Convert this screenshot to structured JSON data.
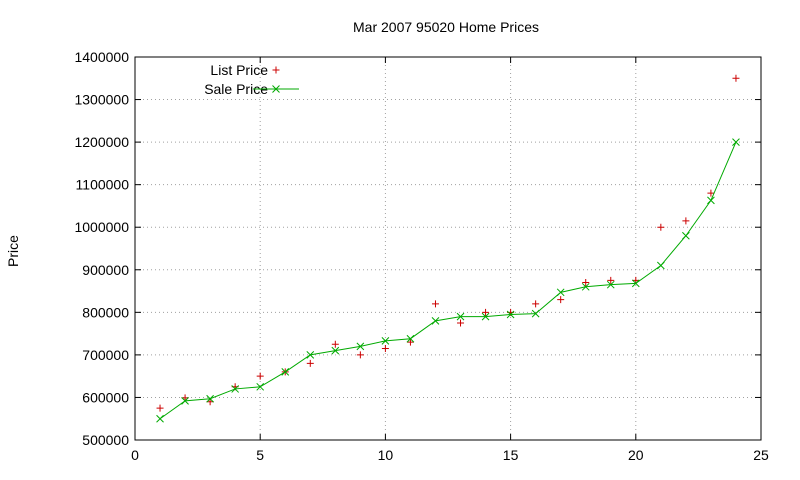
{
  "chart_data": {
    "type": "scatter",
    "title": "Mar 2007 95020 Home Prices",
    "xlabel": "",
    "ylabel": "Price",
    "xlim": [
      0,
      25
    ],
    "ylim": [
      500000,
      1400000
    ],
    "xticks": [
      0,
      5,
      10,
      15,
      20,
      25
    ],
    "yticks": [
      500000,
      600000,
      700000,
      800000,
      900000,
      1000000,
      1100000,
      1200000,
      1300000,
      1400000
    ],
    "grid": true,
    "legend_position": "top-left",
    "series": [
      {
        "name": "List Price",
        "style": "points",
        "marker": "+",
        "color": "#cc0000",
        "x": [
          1,
          2,
          3,
          4,
          5,
          6,
          7,
          8,
          9,
          10,
          11,
          12,
          13,
          14,
          15,
          16,
          17,
          18,
          19,
          20,
          21,
          22,
          23,
          24
        ],
        "y": [
          575000,
          599000,
          590000,
          625000,
          650000,
          660000,
          680000,
          725000,
          700000,
          715000,
          730000,
          820000,
          775000,
          800000,
          800000,
          820000,
          830000,
          870000,
          875000,
          875000,
          1000000,
          1015000,
          1080000,
          1350000
        ]
      },
      {
        "name": "Sale Price",
        "style": "linespoints",
        "marker": "x",
        "color": "#00aa00",
        "x": [
          1,
          2,
          3,
          4,
          5,
          6,
          7,
          8,
          9,
          10,
          11,
          12,
          13,
          14,
          15,
          16,
          17,
          18,
          19,
          20,
          21,
          22,
          23,
          24
        ],
        "y": [
          550000,
          592000,
          597000,
          620000,
          625000,
          660000,
          700000,
          710000,
          720000,
          733000,
          738000,
          780000,
          790000,
          790000,
          795000,
          797000,
          847000,
          860000,
          865000,
          868000,
          910000,
          980000,
          1063000,
          1200000
        ]
      }
    ]
  }
}
